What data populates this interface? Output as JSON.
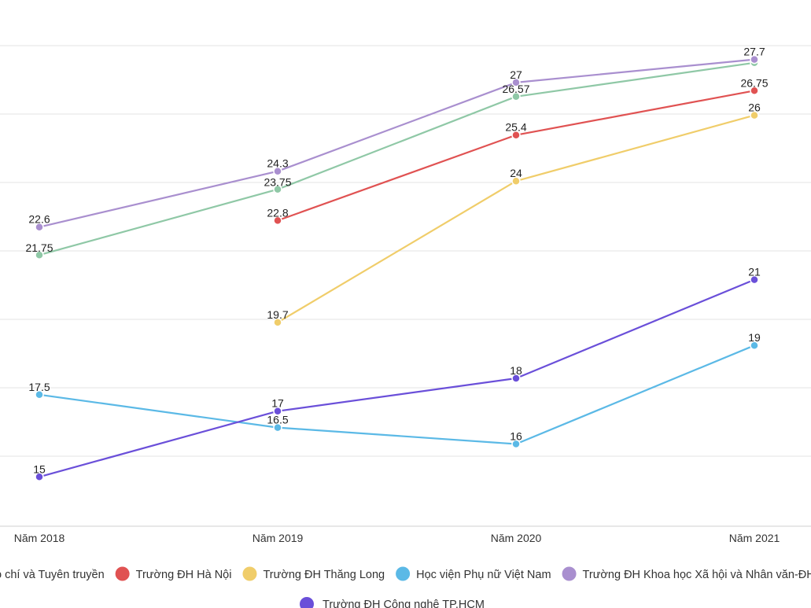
{
  "chart_data": {
    "type": "line",
    "categories": [
      "Năm 2018",
      "Năm 2019",
      "Năm 2020",
      "Năm 2021"
    ],
    "ylim": [
      13.5,
      28.6
    ],
    "grid": true,
    "legend_position": "bottom",
    "series": [
      {
        "name": "Học viện Báo chí và Tuyên truyền",
        "legend_label": "o chí và Tuyên truyền",
        "color": "#8fc8a6",
        "values": [
          21.75,
          23.75,
          26.57,
          27.6
        ],
        "labels": [
          "21.75",
          "23.75",
          "26.57",
          ""
        ]
      },
      {
        "name": "Trường ĐH Hà Nội",
        "legend_label": "Trường ĐH Hà Nội",
        "color": "#e05252",
        "values": [
          null,
          22.8,
          25.4,
          26.75
        ],
        "labels": [
          "",
          "22.8",
          "25.4",
          "26.75"
        ]
      },
      {
        "name": "Trường ĐH Thăng Long",
        "legend_label": "Trường ĐH Thăng Long",
        "color": "#f0cd6a",
        "values": [
          null,
          19.7,
          24,
          26
        ],
        "labels": [
          "",
          "19.7",
          "24",
          "26"
        ]
      },
      {
        "name": "Học viện Phụ nữ Việt Nam",
        "legend_label": "Học viện Phụ nữ Việt Nam",
        "color": "#5bb9e6",
        "values": [
          17.5,
          16.5,
          16,
          19
        ],
        "labels": [
          "17.5",
          "16.5",
          "16",
          "19"
        ]
      },
      {
        "name": "Trường ĐH Khoa học Xã hội và Nhân văn-ĐHQG",
        "legend_label": "Trường ĐH Khoa học Xã hội và Nhân văn-ĐHQG",
        "color": "#a98fcf",
        "values": [
          22.6,
          24.3,
          27,
          27.7
        ],
        "labels": [
          "22.6",
          "24.3",
          "27",
          "27.7"
        ]
      },
      {
        "name": "Trường ĐH Công nghệ TP.HCM",
        "legend_label": "Trường ĐH Công nghệ TP.HCM",
        "color": "#6a4fd9",
        "values": [
          15,
          17,
          18,
          21
        ],
        "labels": [
          "15",
          "17",
          "18",
          "21"
        ]
      }
    ]
  }
}
